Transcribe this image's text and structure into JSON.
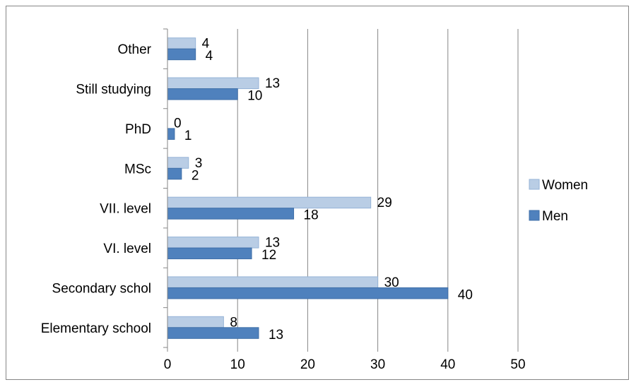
{
  "chart_data": {
    "type": "bar",
    "orientation": "horizontal",
    "categories": [
      "Elementary school",
      "Secondary schol",
      "VI. level",
      "VII. level",
      "MSc",
      "PhD",
      "Still studying",
      "Other"
    ],
    "series": [
      {
        "name": "Men",
        "values": [
          13,
          40,
          12,
          18,
          2,
          1,
          10,
          4
        ],
        "color": "#4f81bd"
      },
      {
        "name": "Women",
        "values": [
          8,
          30,
          13,
          29,
          3,
          0,
          13,
          4
        ],
        "color": "#b9cde5"
      }
    ],
    "xlim": [
      0,
      50
    ],
    "xticks": [
      0,
      10,
      20,
      30,
      40,
      50
    ],
    "grid": "vertical",
    "legend": "right",
    "legend_order": [
      "Women",
      "Men"
    ],
    "title": "",
    "xlabel": "",
    "ylabel": ""
  }
}
